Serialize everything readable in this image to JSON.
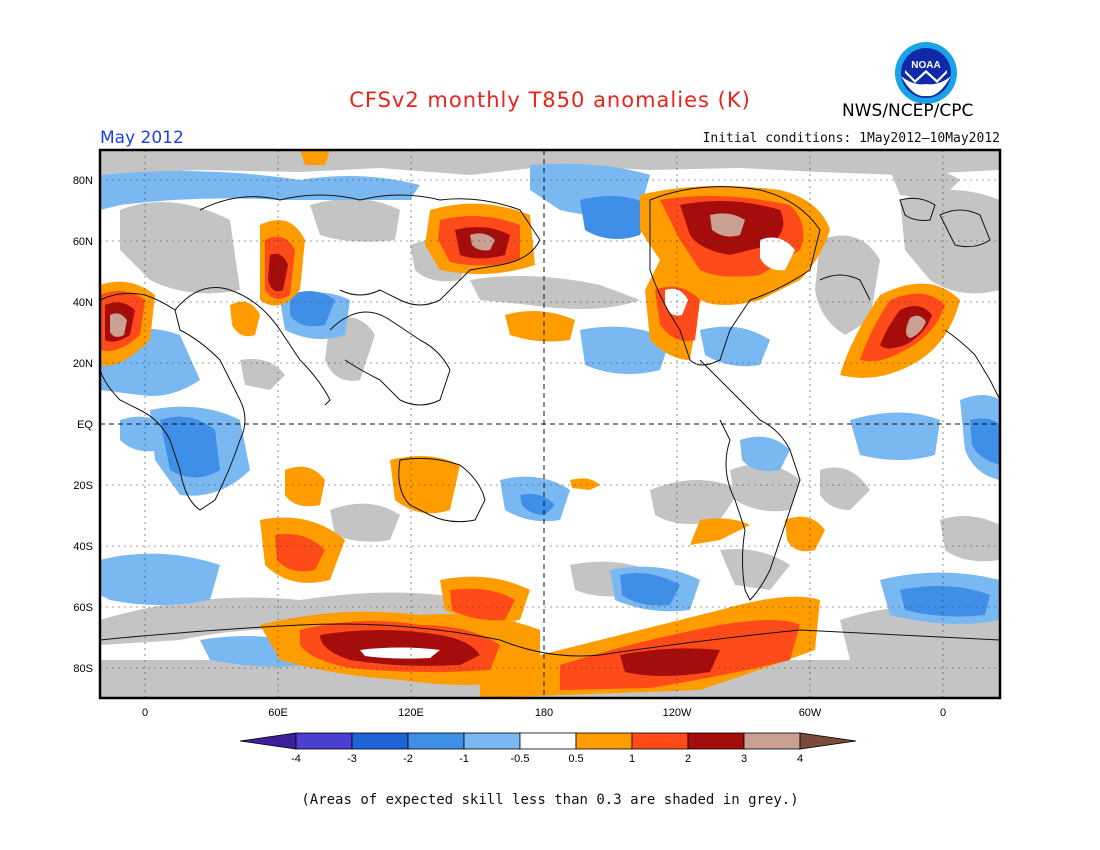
{
  "title": "CFSv2 monthly T850 anomalies (K)",
  "month": "May 2012",
  "initial_conditions": "Initial conditions: 1May2012—10May2012",
  "org": "NWS/NCEP/CPC",
  "logo_text": "NOAA",
  "footnote": "(Areas of expected skill less than 0.3 are shaded in grey.)",
  "map": {
    "lat_labels": [
      "80N",
      "60N",
      "40N",
      "20N",
      "EQ",
      "20S",
      "40S",
      "60S",
      "80S"
    ],
    "lon_labels": [
      "0",
      "60E",
      "120E",
      "180",
      "120W",
      "60W",
      "0"
    ]
  },
  "colorbar": {
    "labels": [
      "-4",
      "-3",
      "-2",
      "-1",
      "-0.5",
      "0.5",
      "1",
      "2",
      "3",
      "4"
    ],
    "colors": [
      "#3b1f9c",
      "#4a3fd0",
      "#1e64d6",
      "#3f8ee8",
      "#7ab8f2",
      "#ffffff",
      "#ff9d00",
      "#ff4a1a",
      "#a50d0d",
      "#c9a092",
      "#7a4a3a"
    ]
  }
}
